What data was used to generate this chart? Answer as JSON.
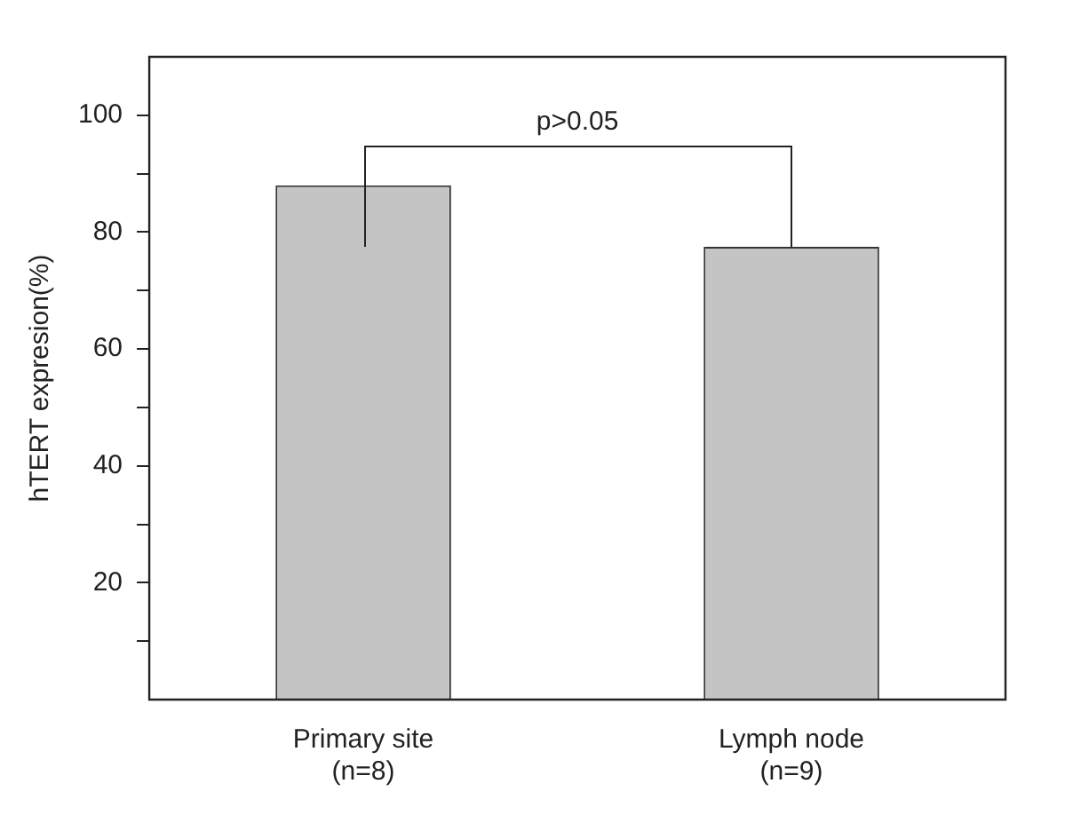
{
  "chart_data": {
    "type": "bar",
    "ylabel": "hTERT expresion(%)",
    "categories": [
      "Primary site\n(n=8)",
      "Lymph node\n(n=9)"
    ],
    "values": [
      88,
      77.5
    ],
    "color": "#c4c4c4",
    "ylim": [
      0,
      110
    ],
    "yticks": [
      {
        "value": 10,
        "label": null
      },
      20,
      {
        "value": 30,
        "label": null
      },
      40,
      {
        "value": 50,
        "label": null
      },
      60,
      {
        "value": 70,
        "label": null
      },
      80,
      {
        "value": 90,
        "label": null
      },
      100
    ],
    "grid": false,
    "legend": false,
    "annotations": [
      "p>0.05"
    ]
  }
}
